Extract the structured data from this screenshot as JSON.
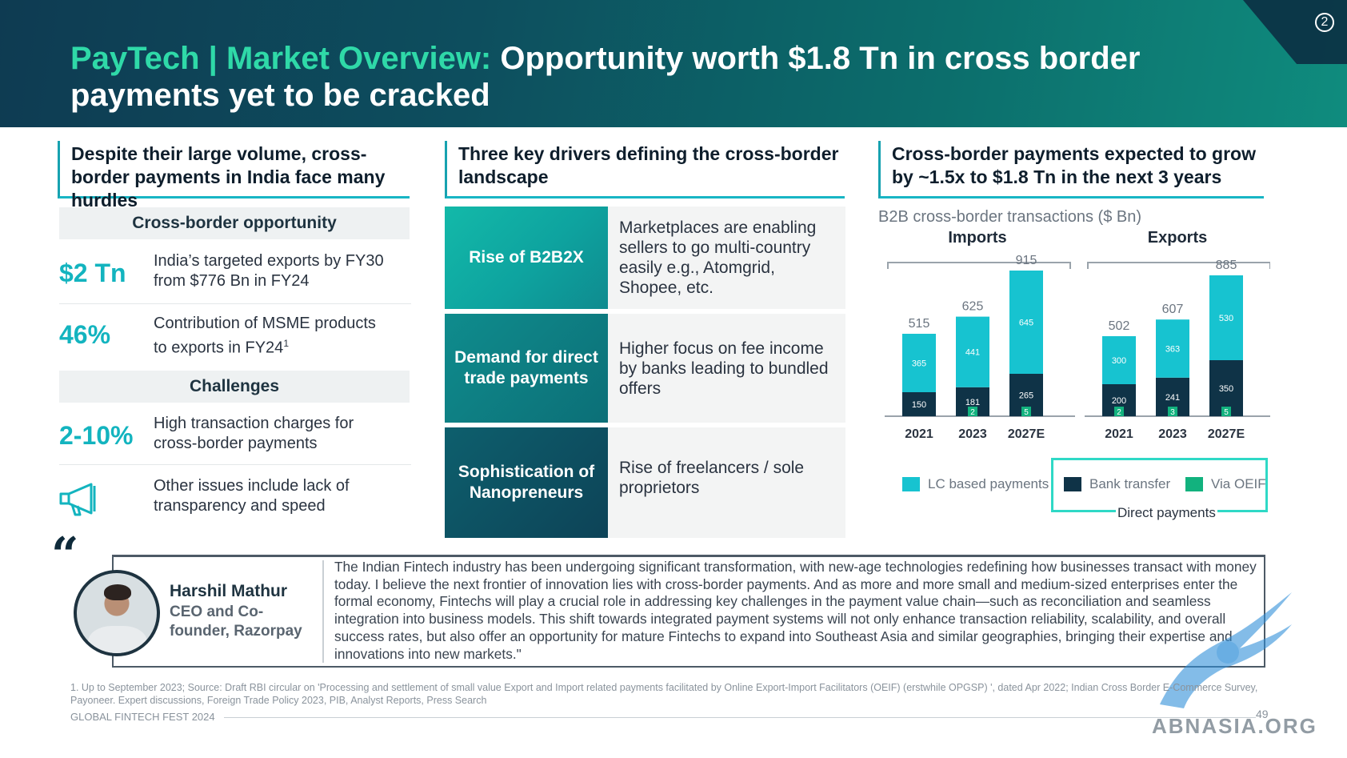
{
  "header": {
    "title_accent": "PayTech | Market Overview:",
    "title_main": " Opportunity worth $1.8 Tn in cross border payments yet to be cracked",
    "page_badge": "2"
  },
  "left": {
    "heading": "Despite their large volume, cross-border payments in India face many hurdles",
    "opportunity_label": "Cross-border opportunity",
    "challenges_label": "Challenges",
    "stats": [
      {
        "value": "$2 Tn",
        "desc": "India’s targeted exports by FY30 from $776 Bn in FY24"
      },
      {
        "value": "46%",
        "desc": "Contribution of MSME products to exports in FY24",
        "sup": "1"
      },
      {
        "value": "2-10%",
        "desc": "High transaction charges for cross-border payments"
      },
      {
        "value": "",
        "desc": "Other issues include lack of transparency and speed",
        "icon": "megaphone-icon"
      }
    ]
  },
  "middle": {
    "heading": "Three key drivers defining the cross-border landscape",
    "drivers": [
      {
        "title": "Rise of B2B2X",
        "desc": "Marketplaces are enabling sellers to go multi-country easily e.g., Atomgrid, Shopee, etc."
      },
      {
        "title": "Demand for direct trade payments",
        "desc": "Higher focus on fee income by banks leading to bundled offers"
      },
      {
        "title": "Sophistication of Nanopreneurs",
        "desc": "Rise of freelancers / sole proprietors"
      }
    ]
  },
  "right": {
    "heading": "Cross-border payments expected to grow by ~1.5x to $1.8 Tn in the next 3 years",
    "legend": {
      "lc": "LC based payments",
      "bank": "Bank transfer",
      "oeif": "Via OEIF",
      "direct": "Direct payments"
    }
  },
  "chart_data": {
    "type": "bar",
    "stacked": true,
    "title": "B2B cross-border transactions ($ Bn)",
    "groups": [
      {
        "name": "Imports",
        "categories": [
          "2021",
          "2023",
          "2027E"
        ],
        "totals": [
          515,
          625,
          915
        ]
      },
      {
        "name": "Exports",
        "categories": [
          "2021",
          "2023",
          "2027E"
        ],
        "totals": [
          502,
          607,
          885
        ]
      }
    ],
    "series": [
      {
        "name": "LC based payments",
        "color": "#17c3d0",
        "imports": [
          365,
          441,
          645
        ],
        "exports": [
          300,
          363,
          530
        ]
      },
      {
        "name": "Bank transfer",
        "color": "#0f3347",
        "imports": [
          150,
          181,
          265
        ],
        "exports": [
          200,
          241,
          350
        ]
      },
      {
        "name": "Via OEIF",
        "color": "#12b27e",
        "imports": [
          0,
          2,
          5
        ],
        "exports": [
          2,
          3,
          5
        ]
      }
    ],
    "legend_position": "bottom"
  },
  "quote": {
    "name": "Harshil Mathur",
    "role": "CEO and Co-founder, Razorpay",
    "text": "The Indian Fintech industry has been undergoing significant transformation, with new-age technologies redefining how businesses transact with money today. I believe the next frontier of innovation lies with cross-border payments. And as more and more small and medium-sized enterprises enter the formal economy, Fintechs will play a crucial role in addressing key challenges in the payment value chain—such as reconciliation and seamless integration into business models. This shift towards integrated payment systems will not only enhance transaction reliability, scalability, and overall success rates, but also offer an opportunity for mature Fintechs to expand into Southeast Asia and similar geographies, bringing their expertise and innovations into new markets.\""
  },
  "footer": {
    "footnote": "1. Up to September 2023; Source: Draft RBI circular on 'Processing and settlement of small value Export and Import related payments facilitated by Online Export-Import Facilitators (OEIF) (erstwhile OPGSP) ', dated Apr 2022; Indian Cross Border E-Commerce Survey, Payoneer. Expert discussions, Foreign Trade Policy 2023, PIB, Analyst Reports, Press Search",
    "brand": "GLOBAL FINTECH FEST 2024",
    "page": "49",
    "watermark": "ABNASIA.ORG"
  }
}
